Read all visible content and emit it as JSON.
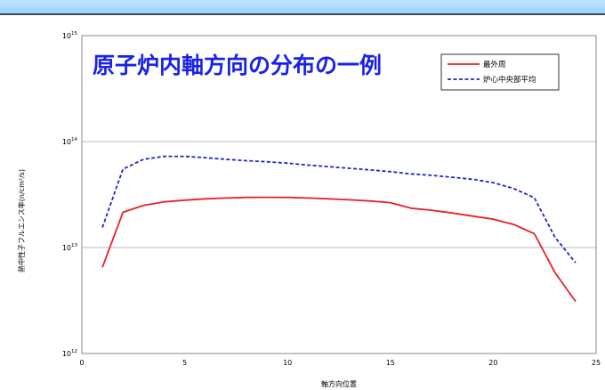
{
  "chart_data": {
    "type": "line",
    "title": "原子炉内軸方向の分布の一例",
    "xlabel": "軸方向位置",
    "ylabel": "熱中性子フルエンス率(n/cm²/s)",
    "xlim": [
      0,
      25
    ],
    "xticks": [
      "0",
      "5",
      "10",
      "15",
      "20",
      "25"
    ],
    "ylim": [
      1000000000000.0,
      1000000000000000.0
    ],
    "yscale": "log",
    "yticks": [
      {
        "base": "10",
        "exp": "12",
        "value": 1000000000000.0
      },
      {
        "base": "10",
        "exp": "13",
        "value": 10000000000000.0
      },
      {
        "base": "10",
        "exp": "14",
        "value": 100000000000000.0
      },
      {
        "base": "10",
        "exp": "15",
        "value": 1000000000000000.0
      }
    ],
    "grid": "horizontal",
    "legend": "top-right",
    "series": [
      {
        "name": "最外周",
        "color": "#e8202a",
        "style": "solid",
        "x": [
          1,
          2,
          3,
          4,
          5,
          6,
          7,
          8,
          9,
          10,
          11,
          12,
          13,
          14,
          15,
          16,
          17,
          18,
          19,
          20,
          21,
          22,
          23,
          24
        ],
        "y": [
          6500000000000.0,
          21500000000000.0,
          25000000000000.0,
          27000000000000.0,
          28000000000000.0,
          28800000000000.0,
          29300000000000.0,
          29700000000000.0,
          29800000000000.0,
          29700000000000.0,
          29300000000000.0,
          28800000000000.0,
          28200000000000.0,
          27500000000000.0,
          26500000000000.0,
          23500000000000.0,
          22500000000000.0,
          21200000000000.0,
          19800000000000.0,
          18500000000000.0,
          16500000000000.0,
          13500000000000.0,
          5800000000000.0,
          3100000000000.0
        ]
      },
      {
        "name": "炉心中央部平均",
        "color": "#1e26c8",
        "style": "dashed",
        "x": [
          1,
          2,
          3,
          4,
          5,
          6,
          7,
          8,
          9,
          10,
          11,
          12,
          13,
          14,
          15,
          16,
          17,
          18,
          19,
          20,
          21,
          22,
          23,
          24
        ],
        "y": [
          15500000000000.0,
          55000000000000.0,
          68000000000000.0,
          72500000000000.0,
          72500000000000.0,
          70500000000000.0,
          68000000000000.0,
          66000000000000.0,
          64500000000000.0,
          62500000000000.0,
          60000000000000.0,
          58000000000000.0,
          56000000000000.0,
          54000000000000.0,
          52000000000000.0,
          49500000000000.0,
          48000000000000.0,
          46000000000000.0,
          44000000000000.0,
          41000000000000.0,
          36000000000000.0,
          29500000000000.0,
          12500000000000.0,
          7200000000000.0
        ]
      }
    ]
  }
}
